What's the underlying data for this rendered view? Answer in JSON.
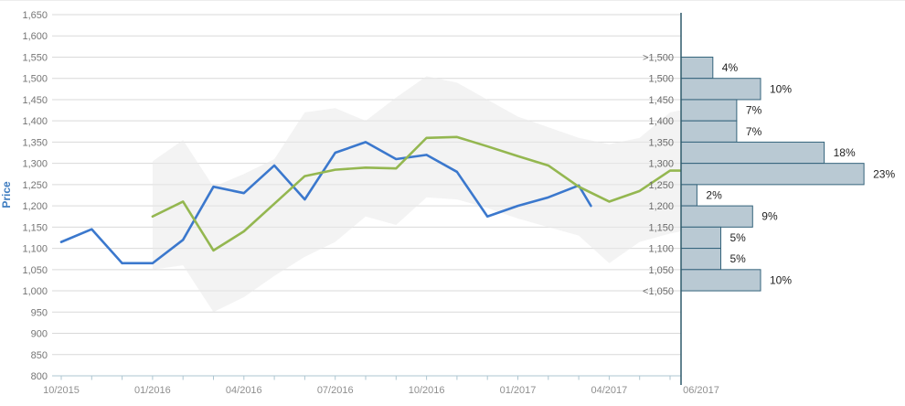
{
  "chart_data": [
    {
      "type": "line",
      "title": "",
      "xlabel": "",
      "ylabel": "Price",
      "ylabel_color": "#3e7cc0",
      "ylim": [
        800,
        1650
      ],
      "ytick_step": 50,
      "grid": true,
      "legend": "none",
      "y_tick_labels_top_to_bottom": [
        "1,650",
        "1,600",
        "1,550",
        "1,500",
        "1,450",
        "1,400",
        "1,350",
        "1,300",
        "1,250",
        "1,200",
        "1,150",
        "1,100",
        "1,050",
        "1,000",
        "950",
        "900",
        "850",
        "800"
      ],
      "x_tick_labels": [
        {
          "label": "10/2015",
          "m": 0,
          "dx": 0
        },
        {
          "label": "01/2016",
          "m": 3,
          "dx": 0
        },
        {
          "label": "04/2016",
          "m": 6,
          "dx": 0
        },
        {
          "label": "07/2016",
          "m": 9,
          "dx": 0
        },
        {
          "label": "10/2016",
          "m": 12,
          "dx": 0
        },
        {
          "label": "01/2017",
          "m": 15,
          "dx": 0
        },
        {
          "label": "04/2017",
          "m": 18,
          "dx": 0
        },
        {
          "label": "06/2017",
          "m": 20,
          "dx": 34
        }
      ],
      "series": [
        {
          "name": "price-line-blue",
          "color": "#3b78cd",
          "x": [
            0,
            1,
            2,
            3,
            4,
            5,
            6,
            7,
            8,
            9,
            10,
            11,
            12,
            13,
            14,
            15,
            16,
            17,
            17.4
          ],
          "values": [
            1115,
            1145,
            1065,
            1065,
            1120,
            1245,
            1230,
            1295,
            1215,
            1325,
            1350,
            1310,
            1320,
            1280,
            1175,
            1200,
            1220,
            1248,
            1200
          ]
        },
        {
          "name": "price-line-green",
          "color": "#94b750",
          "x": [
            3,
            4,
            5,
            6,
            7,
            8,
            9,
            10,
            11,
            12,
            13,
            14,
            15,
            16,
            17,
            18,
            19,
            20,
            20.36
          ],
          "values": [
            1175,
            1210,
            1095,
            1140,
            1205,
            1270,
            1285,
            1290,
            1288,
            1360,
            1362,
            1340,
            1317,
            1295,
            1245,
            1210,
            1235,
            1283,
            1283
          ]
        }
      ],
      "band": {
        "name": "uncertainty-band",
        "color": "#e9e9e9",
        "opacity": 0.55,
        "x": [
          3,
          4,
          5,
          6,
          7,
          8,
          9,
          10,
          11,
          12,
          13,
          14,
          15,
          16,
          17,
          18,
          19,
          20,
          20.36
        ],
        "upper": [
          1305,
          1355,
          1245,
          1275,
          1310,
          1420,
          1430,
          1400,
          1455,
          1505,
          1490,
          1450,
          1410,
          1385,
          1360,
          1345,
          1360,
          1420,
          1425
        ],
        "lower": [
          1050,
          1060,
          950,
          985,
          1035,
          1080,
          1115,
          1175,
          1155,
          1220,
          1215,
          1195,
          1170,
          1150,
          1130,
          1065,
          1115,
          1135,
          1140
        ]
      },
      "axis_color": "#aec6d1"
    },
    {
      "type": "bar",
      "orientation": "horizontal",
      "title": "",
      "axis_date_label": "06/2017",
      "bin_edge_values": [
        1550,
        1500,
        1450,
        1400,
        1350,
        1300,
        1250,
        1200,
        1150,
        1100,
        1050,
        1000
      ],
      "bin_edge_labels": [
        ">1,500",
        "1,500",
        "1,450",
        "1,400",
        "1,350",
        "1,300",
        "1,250",
        "1,200",
        "1,150",
        "1,100",
        "1,050",
        "<1,050"
      ],
      "values": [
        4,
        10,
        7,
        7,
        18,
        23,
        2,
        9,
        5,
        5,
        10
      ],
      "value_labels": [
        "4%",
        "10%",
        "7%",
        "7%",
        "18%",
        "23%",
        "2%",
        "9%",
        "5%",
        "5%",
        "10%"
      ],
      "bar_fill": "#b9c9d3",
      "bar_stroke": "#35647c",
      "axis_color": "#2e5a6b"
    }
  ]
}
